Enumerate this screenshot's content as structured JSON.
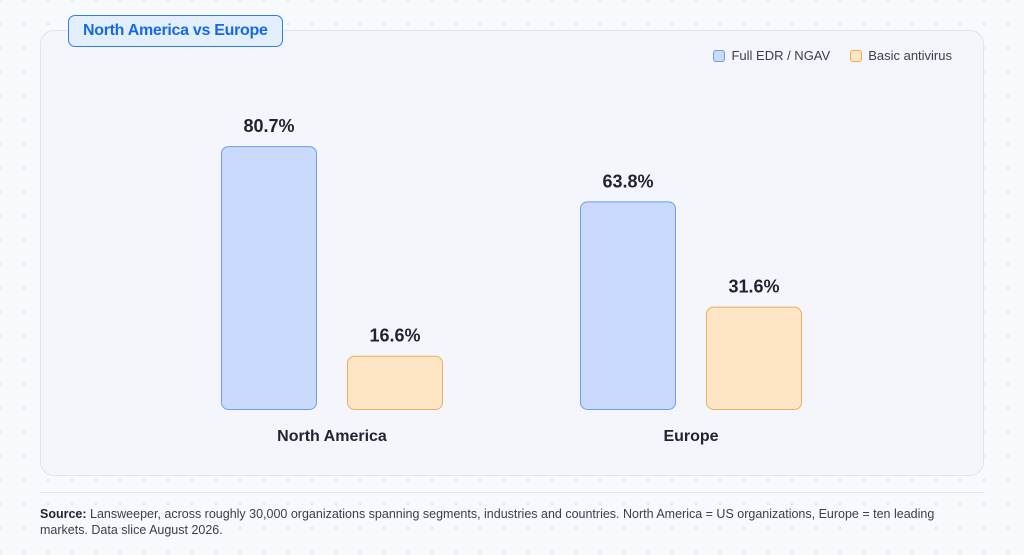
{
  "chart_data": {
    "type": "bar",
    "title": "North America vs Europe",
    "categories": [
      "North America",
      "Europe"
    ],
    "series": [
      {
        "name": "Full EDR / NGAV",
        "values": [
          80.7,
          63.8
        ],
        "color": "#c9dafc",
        "stroke": "#6e9df0"
      },
      {
        "name": "Basic antivirus",
        "values": [
          16.6,
          31.6
        ],
        "color": "#fde5c6",
        "stroke": "#e9b15e"
      }
    ],
    "value_suffix": "%",
    "ylim": [
      0,
      100
    ],
    "grid": false,
    "legend_position": "top-right"
  },
  "footer": {
    "source_label": "Source:",
    "source_text": "Lansweeper, across roughly 30,000 organizations spanning segments, industries and countries. North America = US organizations, Europe = ten leading markets. Data slice August 2026."
  }
}
